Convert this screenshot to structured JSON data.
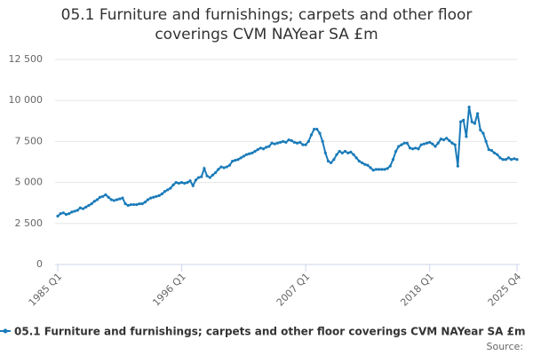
{
  "chart_data": {
    "type": "line",
    "title": "05.1 Furniture and furnishings; carpets and other floor coverings CVM NAYear SA £m",
    "categories": [
      "1985 Q1",
      null,
      null,
      null,
      null,
      null,
      null,
      null,
      null,
      null,
      null,
      null,
      null,
      null,
      null,
      null,
      null,
      null,
      null,
      null,
      null,
      null,
      null,
      null,
      null,
      null,
      null,
      null,
      null,
      null,
      null,
      null,
      null,
      null,
      null,
      null,
      null,
      null,
      null,
      null,
      null,
      null,
      null,
      null,
      "1996 Q1",
      null,
      null,
      null,
      null,
      null,
      null,
      null,
      null,
      null,
      null,
      null,
      null,
      null,
      null,
      null,
      null,
      null,
      null,
      null,
      null,
      null,
      null,
      null,
      null,
      null,
      null,
      null,
      null,
      null,
      null,
      null,
      null,
      null,
      null,
      null,
      null,
      null,
      null,
      null,
      null,
      null,
      null,
      null,
      "2007 Q1",
      null,
      null,
      null,
      null,
      null,
      null,
      null,
      null,
      null,
      null,
      null,
      null,
      null,
      null,
      null,
      null,
      null,
      null,
      null,
      null,
      null,
      null,
      null,
      null,
      null,
      null,
      null,
      null,
      null,
      null,
      null,
      null,
      null,
      null,
      null,
      null,
      null,
      null,
      null,
      null,
      null,
      null,
      null,
      "2018 Q1",
      null,
      null,
      null,
      null,
      null,
      null,
      null,
      null,
      null,
      null,
      null,
      null,
      null,
      null,
      null,
      null,
      null,
      null,
      null,
      null,
      null,
      null,
      null,
      null,
      null,
      null,
      null,
      null,
      null,
      null,
      "2025 Q4"
    ],
    "series": [
      {
        "name": "05.1 Furniture and furnishings; carpets and other floor coverings CVM NAYear SA £m",
        "color": "#1a7bb9",
        "values": [
          2950,
          3100,
          3150,
          3050,
          3100,
          3200,
          3250,
          3300,
          3450,
          3400,
          3500,
          3600,
          3700,
          3850,
          3950,
          4100,
          4150,
          4250,
          4100,
          3950,
          3900,
          3950,
          4000,
          4050,
          3700,
          3600,
          3650,
          3650,
          3650,
          3700,
          3700,
          3800,
          3950,
          4050,
          4100,
          4150,
          4200,
          4300,
          4450,
          4550,
          4650,
          4850,
          5000,
          4950,
          5000,
          4950,
          5000,
          5100,
          4800,
          5150,
          5300,
          5350,
          5850,
          5400,
          5300,
          5450,
          5600,
          5800,
          5950,
          5900,
          5950,
          6050,
          6300,
          6350,
          6400,
          6500,
          6600,
          6700,
          6750,
          6800,
          6900,
          7000,
          7100,
          7050,
          7150,
          7200,
          7400,
          7350,
          7400,
          7450,
          7500,
          7450,
          7600,
          7550,
          7450,
          7400,
          7450,
          7300,
          7300,
          7500,
          7900,
          8250,
          8250,
          8000,
          7500,
          6800,
          6300,
          6200,
          6400,
          6700,
          6900,
          6800,
          6900,
          6800,
          6850,
          6700,
          6500,
          6300,
          6200,
          6100,
          6050,
          5900,
          5750,
          5800,
          5800,
          5800,
          5800,
          5850,
          6000,
          6400,
          6900,
          7200,
          7300,
          7400,
          7400,
          7100,
          7050,
          7100,
          7050,
          7300,
          7350,
          7400,
          7450,
          7350,
          7200,
          7400,
          7650,
          7600,
          7700,
          7550,
          7400,
          7300,
          6000,
          8700,
          8800,
          7800,
          9600,
          8700,
          8600,
          9200,
          8200,
          8000,
          7500,
          7000,
          6950,
          6800,
          6700,
          6500,
          6400,
          6400,
          6500,
          6400,
          6450,
          6400
        ]
      }
    ],
    "ylim": [
      0,
      12500
    ],
    "yticks": [
      0,
      {
        "value": 2500,
        "label": "2 500"
      },
      {
        "value": 5000,
        "label": "5 000"
      },
      {
        "value": 7500,
        "label": "7 500"
      },
      {
        "value": 10000,
        "label": "10 000"
      },
      {
        "value": 12500,
        "label": "12 500"
      }
    ],
    "grid": true,
    "source": "Source:"
  }
}
